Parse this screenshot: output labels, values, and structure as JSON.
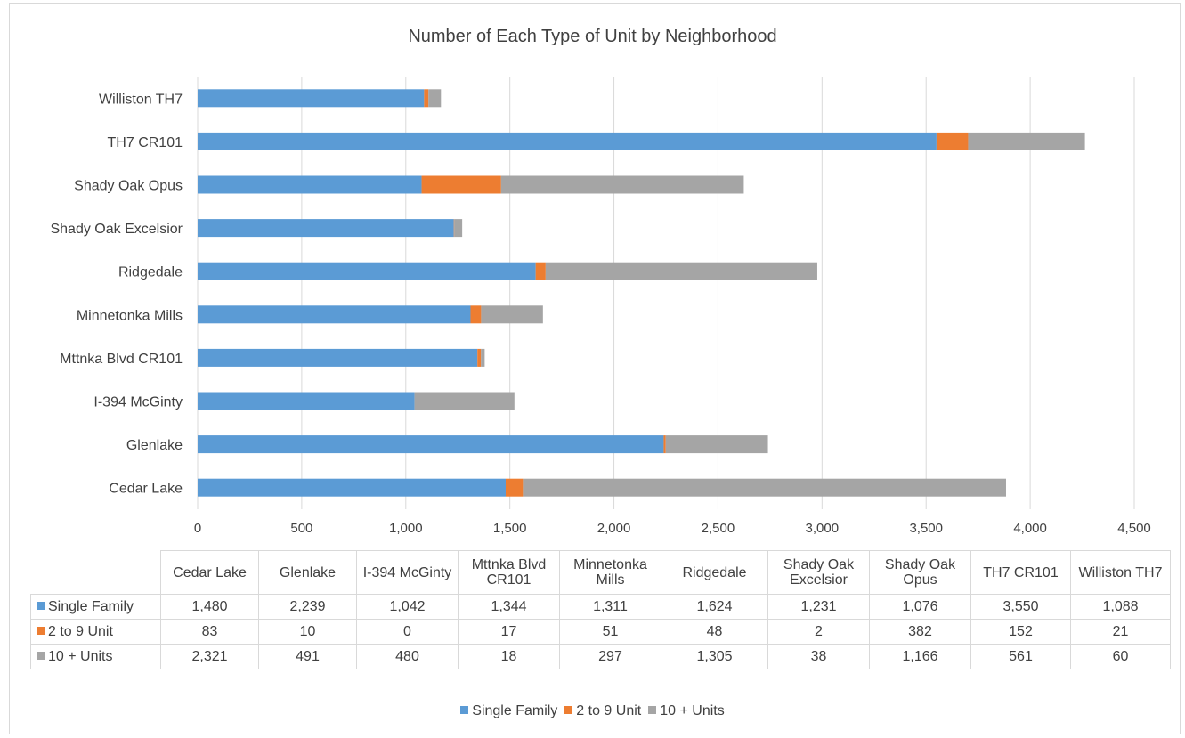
{
  "chart_data": {
    "type": "bar",
    "orientation": "horizontal",
    "stacked": true,
    "title": "Number of Each Type of Unit by Neighborhood",
    "categories": [
      "Cedar Lake",
      "Glenlake",
      "I-394 McGinty",
      "Mttnka Blvd CR101",
      "Minnetonka Mills",
      "Ridgedale",
      "Shady Oak Excelsior",
      "Shady Oak Opus",
      "TH7 CR101",
      "Williston TH7"
    ],
    "table_headers": [
      "Cedar Lake",
      "Glenlake",
      "I-394 McGinty",
      "Mttnka Blvd CR101",
      "Minnetonka Mills",
      "Ridgedale",
      "Shady Oak Excelsior",
      "Shady Oak Opus",
      "TH7 CR101",
      "Williston TH7"
    ],
    "series": [
      {
        "name": "Single Family",
        "color": "#5b9bd5",
        "values": [
          1480,
          2239,
          1042,
          1344,
          1311,
          1624,
          1231,
          1076,
          3550,
          1088
        ],
        "labels": [
          "1,480",
          "2,239",
          "1,042",
          "1,344",
          "1,311",
          "1,624",
          "1,231",
          "1,076",
          "3,550",
          "1,088"
        ]
      },
      {
        "name": "2 to 9 Unit",
        "color": "#ed7d31",
        "values": [
          83,
          10,
          0,
          17,
          51,
          48,
          2,
          382,
          152,
          21
        ],
        "labels": [
          "83",
          "10",
          "0",
          "17",
          "51",
          "48",
          "2",
          "382",
          "152",
          "21"
        ]
      },
      {
        "name": "10 + Units",
        "color": "#a5a5a5",
        "values": [
          2321,
          491,
          480,
          18,
          297,
          1305,
          38,
          1166,
          561,
          60
        ],
        "labels": [
          "2,321",
          "491",
          "480",
          "18",
          "297",
          "1,305",
          "38",
          "1,166",
          "561",
          "60"
        ]
      }
    ],
    "xlim": [
      0,
      4500
    ],
    "xticks": [
      0,
      500,
      1000,
      1500,
      2000,
      2500,
      3000,
      3500,
      4000,
      4500
    ],
    "xtick_labels": [
      "0",
      "500",
      "1,000",
      "1,500",
      "2,000",
      "2,500",
      "3,000",
      "3,500",
      "4,000",
      "4,500"
    ],
    "grid": "vertical",
    "legend": "bottom",
    "data_table": true
  }
}
